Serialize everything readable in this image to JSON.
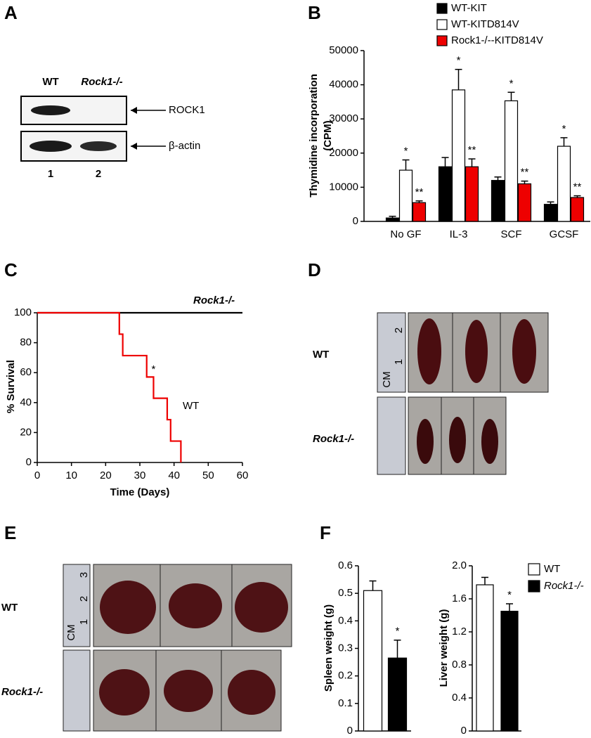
{
  "panel_labels": [
    "A",
    "B",
    "C",
    "D",
    "E",
    "F"
  ],
  "blot": {
    "lanes": [
      "WT",
      "Rock1-/-"
    ],
    "bands": [
      "ROCK1",
      "β-actin"
    ],
    "lane_numbers": [
      "1",
      "2"
    ]
  },
  "spleen_photos": {
    "rows": [
      "WT",
      "Rock1-/-"
    ],
    "ruler": [
      "CM",
      "1",
      "2"
    ]
  },
  "liver_photos": {
    "rows": [
      "WT",
      "Rock1-/-"
    ],
    "ruler": [
      "CM",
      "1",
      "2",
      "3"
    ]
  },
  "chart_data": [
    {
      "type": "bar",
      "ylabel": [
        "Thymidine incorporation",
        "(CPM)"
      ],
      "categories": [
        "No GF",
        "IL-3",
        "SCF",
        "GCSF"
      ],
      "series": [
        {
          "name": "WT-KIT",
          "color": "#000000",
          "values": [
            1000,
            16000,
            12000,
            5000
          ],
          "errors": [
            500,
            2700,
            1000,
            700
          ]
        },
        {
          "name": "WT-KITD814V",
          "color": "#ffffff",
          "values": [
            15000,
            38500,
            35300,
            22000
          ],
          "errors": [
            3000,
            6000,
            2500,
            2500
          ],
          "annotations": [
            "*",
            "*",
            "*",
            "*"
          ]
        },
        {
          "name": "Rock1-/--KITD814V",
          "color": "#ee0000",
          "values": [
            5500,
            16000,
            11000,
            7000
          ],
          "errors": [
            500,
            2300,
            800,
            500
          ],
          "annotations": [
            "**",
            "**",
            "**",
            "**"
          ]
        }
      ],
      "ylim": [
        0,
        50000
      ],
      "yticks": [
        0,
        10000,
        20000,
        30000,
        40000,
        50000
      ],
      "legend": "top"
    },
    {
      "type": "line",
      "xlabel": "Time (Days)",
      "ylabel": "% Survival",
      "series": [
        {
          "name": "Rock1-/-",
          "color": "#000000",
          "x": [
            0,
            60
          ],
          "values": [
            100,
            100
          ]
        },
        {
          "name": "WT",
          "color": "#ee0000",
          "x": [
            0,
            24,
            24,
            25,
            25,
            32,
            32,
            34,
            34,
            38,
            38,
            39,
            39,
            42,
            42
          ],
          "values": [
            100,
            100,
            85.7,
            85.7,
            71.4,
            71.4,
            57.1,
            57.1,
            42.9,
            42.9,
            28.6,
            28.6,
            14.3,
            14.3,
            0
          ]
        }
      ],
      "annotations": [
        {
          "text": "*",
          "x": 34,
          "y": 62
        }
      ],
      "xlim": [
        0,
        60
      ],
      "xticks": [
        0,
        10,
        20,
        30,
        40,
        50,
        60
      ],
      "ylim": [
        0,
        100
      ],
      "yticks": [
        0,
        20,
        40,
        60,
        80,
        100
      ]
    },
    {
      "type": "bar",
      "ylabel": "Spleen weight (g)",
      "categories": [
        null
      ],
      "series": [
        {
          "name": "WT",
          "color": "#ffffff",
          "values": [
            0.51
          ],
          "errors": [
            0.035
          ]
        },
        {
          "name": "Rock1-/-",
          "color": "#000000",
          "values": [
            0.265
          ],
          "errors": [
            0.065
          ],
          "annotations": [
            "*"
          ]
        }
      ],
      "ylim": [
        0,
        0.6
      ],
      "yticks": [
        0,
        0.1,
        0.2,
        0.3,
        0.4,
        0.5,
        0.6
      ]
    },
    {
      "type": "bar",
      "ylabel": "Liver weight (g)",
      "categories": [
        null
      ],
      "series": [
        {
          "name": "WT",
          "color": "#ffffff",
          "values": [
            1.77
          ],
          "errors": [
            0.09
          ]
        },
        {
          "name": "Rock1-/-",
          "color": "#000000",
          "values": [
            1.45
          ],
          "errors": [
            0.09
          ],
          "annotations": [
            "*"
          ]
        }
      ],
      "ylim": [
        0,
        2
      ],
      "yticks": [
        0,
        0.4,
        0.8,
        1.2,
        1.6,
        {
          "value": 2,
          "label": "2.0"
        }
      ],
      "legend": "right"
    }
  ]
}
